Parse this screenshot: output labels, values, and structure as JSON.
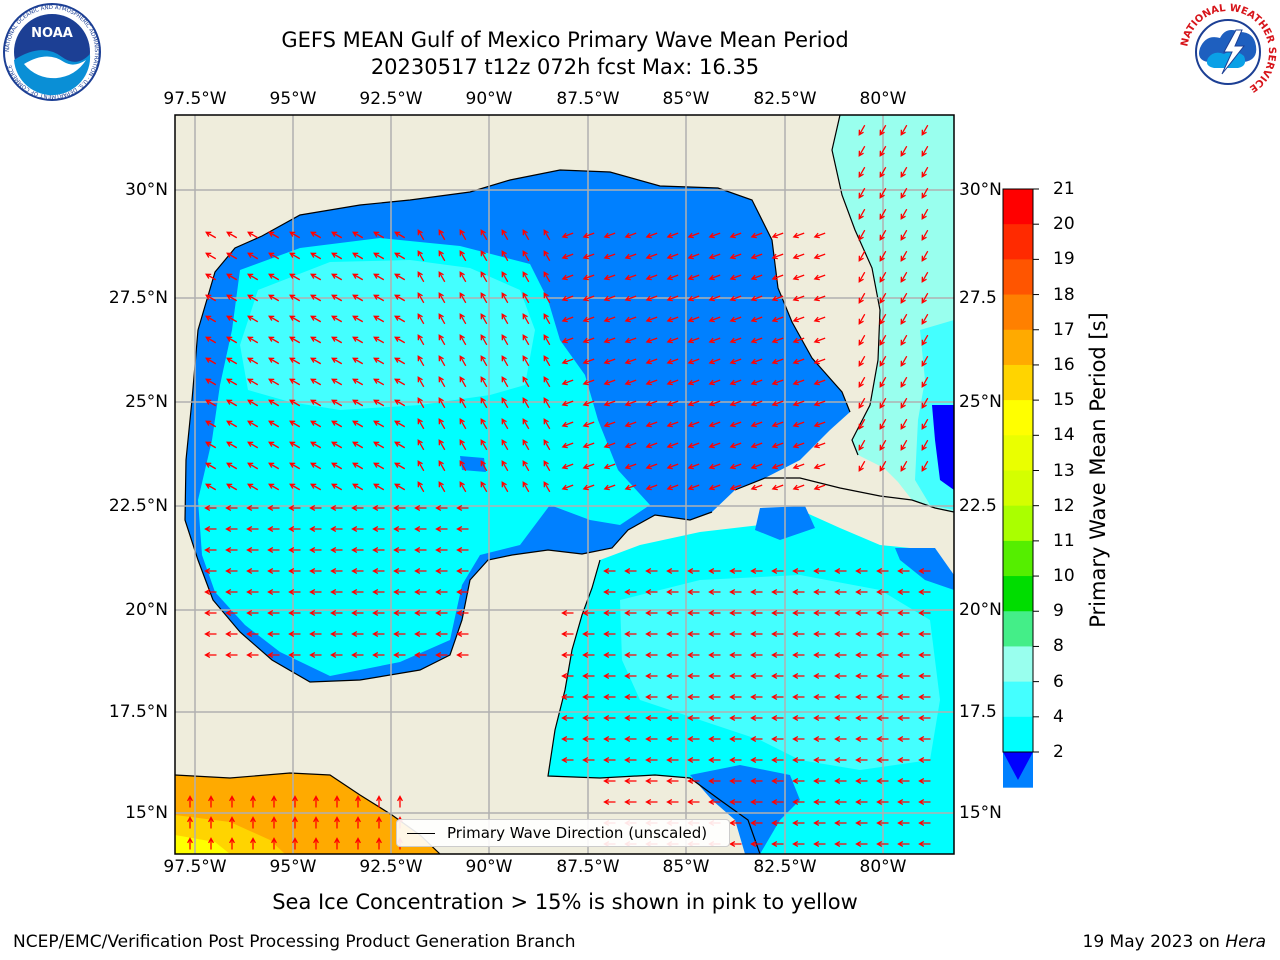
{
  "title": {
    "line1": "GEFS MEAN Gulf of Mexico Primary Wave Mean Period",
    "line2": "20230517 t12z 072h fcst   Max: 16.35"
  },
  "map": {
    "lon_labels": [
      "97.5°W",
      "95°W",
      "92.5°W",
      "90°W",
      "87.5°W",
      "85°W",
      "82.5°W",
      "80°W"
    ],
    "lat_labels_left": [
      "30°N",
      "27.5°N",
      "25°N",
      "22.5°N",
      "20°N",
      "17.5°N",
      "15°N"
    ],
    "lat_labels_right": [
      "30°N",
      "27.5",
      "25°N",
      "22.5",
      "20°N",
      "17.5",
      "15°N"
    ],
    "colors": {
      "land": "#efeddc",
      "coast": "#000000",
      "grid": "#b0b0b0",
      "arrow": "#ff0000"
    },
    "legend_label": "Primary Wave Direction (unscaled)"
  },
  "colorbar": {
    "title": "Primary Wave Mean Period [s]",
    "labels": [
      "21",
      "20",
      "19",
      "18",
      "17",
      "16",
      "15",
      "14",
      "13",
      "12",
      "11",
      "10",
      "9",
      "8",
      "6",
      "4",
      "2"
    ],
    "colors": [
      "#ff0000",
      "#ff2a00",
      "#ff5500",
      "#ff8000",
      "#ffaa00",
      "#ffd400",
      "#ffff00",
      "#eaff00",
      "#d4ff00",
      "#aaff00",
      "#55ee00",
      "#00dd00",
      "#44ee88",
      "#99ffee",
      "#44ffff",
      "#00ffff",
      "#0080ff"
    ],
    "under_color": "#0000ff"
  },
  "subtitle": "Sea Ice Concentration > 15% is shown in pink to yellow",
  "footer": {
    "left": "NCEP/EMC/Verification Post Processing Product Generation Branch",
    "right_prefix": "19 May 2023 on ",
    "right_host": "Hera"
  },
  "logos": {
    "noaa_text": "NOAA",
    "noaa_ring": "NATIONAL OCEANIC AND ATMOSPHERIC ADMINISTRATION · U.S. DEPARTMENT OF COMMERCE",
    "nws_ring": "NATIONAL WEATHER SERVICE"
  }
}
